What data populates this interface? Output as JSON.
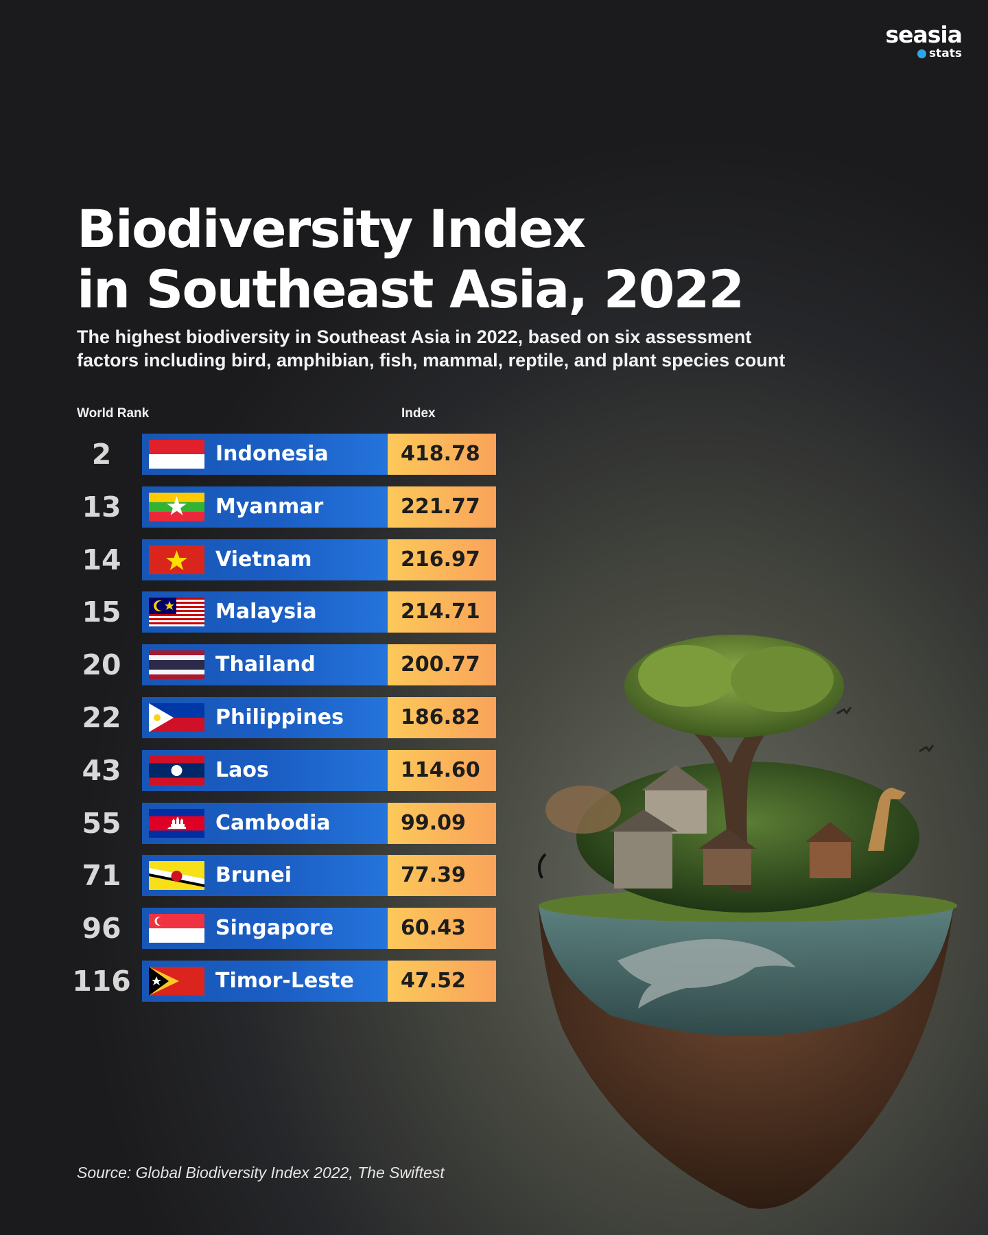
{
  "brand": {
    "line1": "seasia",
    "line2": "stats"
  },
  "title_line1": "Biodiversity Index",
  "title_line2": "in Southeast Asia, 2022",
  "subtitle_line1": "The highest biodiversity in Southeast Asia in 2022, based on six assessment",
  "subtitle_line2": "factors including bird, amphibian, fish, mammal, reptile, and plant species count",
  "source": "Source: Global Biodiversity Index 2022, The Swiftest",
  "colors": {
    "bar": "#1b5ec4",
    "value_box": "#fbb45a",
    "background": "#1b1b1d"
  },
  "chart_data": {
    "type": "table",
    "title": "Biodiversity Index in Southeast Asia, 2022",
    "columns": [
      "World Rank",
      "Index"
    ],
    "rows": [
      {
        "rank": "2",
        "country": "Indonesia",
        "index": 418.78,
        "index_label": "418.78",
        "flag": "indonesia-flag"
      },
      {
        "rank": "13",
        "country": "Myanmar",
        "index": 221.77,
        "index_label": "221.77",
        "flag": "myanmar-flag"
      },
      {
        "rank": "14",
        "country": "Vietnam",
        "index": 216.97,
        "index_label": "216.97",
        "flag": "vietnam-flag"
      },
      {
        "rank": "15",
        "country": "Malaysia",
        "index": 214.71,
        "index_label": "214.71",
        "flag": "malaysia-flag"
      },
      {
        "rank": "20",
        "country": "Thailand",
        "index": 200.77,
        "index_label": "200.77",
        "flag": "thailand-flag"
      },
      {
        "rank": "22",
        "country": "Philippines",
        "index": 186.82,
        "index_label": "186.82",
        "flag": "philippines-flag"
      },
      {
        "rank": "43",
        "country": "Laos",
        "index": 114.6,
        "index_label": "114.60",
        "flag": "laos-flag"
      },
      {
        "rank": "55",
        "country": "Cambodia",
        "index": 99.09,
        "index_label": "99.09",
        "flag": "cambodia-flag"
      },
      {
        "rank": "71",
        "country": "Brunei",
        "index": 77.39,
        "index_label": "77.39",
        "flag": "brunei-flag"
      },
      {
        "rank": "96",
        "country": "Singapore",
        "index": 60.43,
        "index_label": "60.43",
        "flag": "singapore-flag"
      },
      {
        "rank": "116",
        "country": "Timor-Leste",
        "index": 47.52,
        "index_label": "47.52",
        "flag": "timor-leste-flag"
      }
    ]
  }
}
